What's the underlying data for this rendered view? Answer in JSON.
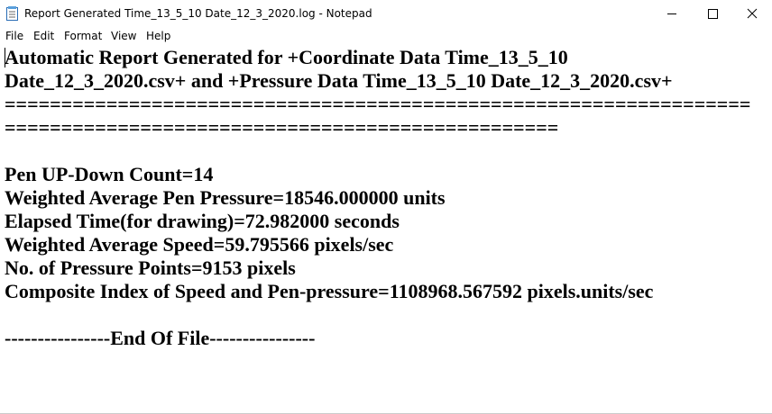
{
  "window": {
    "title": "Report Generated Time_13_5_10 Date_12_3_2020.log - Notepad"
  },
  "menu": [
    "File",
    "Edit",
    "Format",
    "View",
    "Help"
  ],
  "document": {
    "heading": [
      "Automatic Report Generated for +Coordinate Data Time_13_5_10",
      "Date_12_3_2020.csv+ and +Pressure Data Time_13_5_10 Date_12_3_2020.csv+"
    ],
    "separator": [
      "==================================================================",
      "================================================="
    ],
    "stats": [
      "Pen UP-Down Count=14",
      "Weighted Average Pen Pressure=18546.000000 units",
      "Elapsed Time(for drawing)=72.982000 seconds",
      "Weighted Average Speed=59.795566 pixels/sec",
      "No. of Pressure Points=9153 pixels",
      "Composite Index of Speed and Pen-pressure=1108968.567592 pixels.units/sec"
    ],
    "footer": "----------------End Of File----------------"
  }
}
